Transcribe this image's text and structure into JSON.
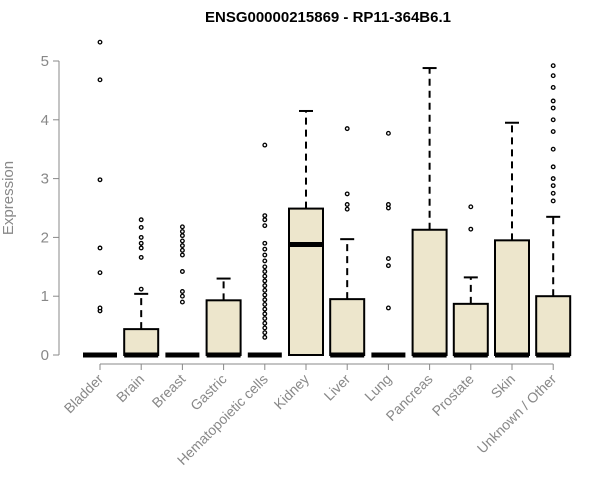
{
  "chart_data": {
    "type": "boxplot",
    "title": "ENSG00000215869 - RP11-364B6.1",
    "xlabel": "",
    "ylabel": "Expression",
    "ylim": [
      0,
      5.4
    ],
    "yticks": [
      0,
      1,
      2,
      3,
      4,
      5
    ],
    "grid": false,
    "legend": "none",
    "box_fill": "#ede6cc",
    "categories": [
      "Bladder",
      "Brain",
      "Breast",
      "Gastric",
      "Hematopoietic cells",
      "Kidney",
      "Liver",
      "Lung",
      "Pancreas",
      "Prostate",
      "Skin",
      "Unknown / Other"
    ],
    "boxes": [
      {
        "q1": 0,
        "median": 0,
        "q3": 0,
        "whisker_low": 0,
        "whisker_high": 0,
        "outliers": [
          0.75,
          0.8,
          1.4,
          1.82,
          2.98,
          4.68,
          5.32
        ]
      },
      {
        "q1": 0,
        "median": 0,
        "q3": 0.44,
        "whisker_low": 0,
        "whisker_high": 1.04,
        "outliers": [
          1.12,
          1.66,
          1.82,
          1.9,
          2.0,
          2.17,
          2.3
        ]
      },
      {
        "q1": 0,
        "median": 0,
        "q3": 0,
        "whisker_low": 0,
        "whisker_high": 0,
        "outliers": [
          0.9,
          1.0,
          1.08,
          1.42,
          1.7,
          1.78,
          1.86,
          1.94,
          2.03,
          2.1,
          2.18
        ]
      },
      {
        "q1": 0,
        "median": 0,
        "q3": 0.93,
        "whisker_low": 0,
        "whisker_high": 1.3,
        "outliers": []
      },
      {
        "q1": 0,
        "median": 0,
        "q3": 0,
        "whisker_low": 0,
        "whisker_high": 0,
        "outliers": [
          0.3,
          0.38,
          0.46,
          0.54,
          0.62,
          0.7,
          0.78,
          0.86,
          0.94,
          1.02,
          1.1,
          1.18,
          1.26,
          1.34,
          1.42,
          1.5,
          1.6,
          1.7,
          1.8,
          1.9,
          2.2,
          2.3,
          2.37,
          3.57
        ]
      },
      {
        "q1": 0,
        "median": 1.88,
        "q3": 2.49,
        "whisker_low": 0,
        "whisker_high": 4.15,
        "outliers": []
      },
      {
        "q1": 0,
        "median": 0,
        "q3": 0.95,
        "whisker_low": 0,
        "whisker_high": 1.97,
        "outliers": [
          2.48,
          2.56,
          2.74,
          3.85
        ]
      },
      {
        "q1": 0,
        "median": 0,
        "q3": 0,
        "whisker_low": 0,
        "whisker_high": 0,
        "outliers": [
          0.8,
          1.52,
          1.64,
          2.5,
          2.56,
          3.77
        ]
      },
      {
        "q1": 0,
        "median": 0,
        "q3": 2.13,
        "whisker_low": 0,
        "whisker_high": 4.88,
        "outliers": []
      },
      {
        "q1": 0,
        "median": 0,
        "q3": 0.87,
        "whisker_low": 0,
        "whisker_high": 1.32,
        "outliers": [
          2.14,
          2.52
        ]
      },
      {
        "q1": 0,
        "median": 0,
        "q3": 1.95,
        "whisker_low": 0,
        "whisker_high": 3.95,
        "outliers": []
      },
      {
        "q1": 0,
        "median": 0,
        "q3": 1.0,
        "whisker_low": 0,
        "whisker_high": 2.35,
        "outliers": [
          2.62,
          2.75,
          2.88,
          3.0,
          3.2,
          3.5,
          3.8,
          4.0,
          4.2,
          4.32,
          4.55,
          4.75,
          4.92
        ]
      }
    ]
  }
}
